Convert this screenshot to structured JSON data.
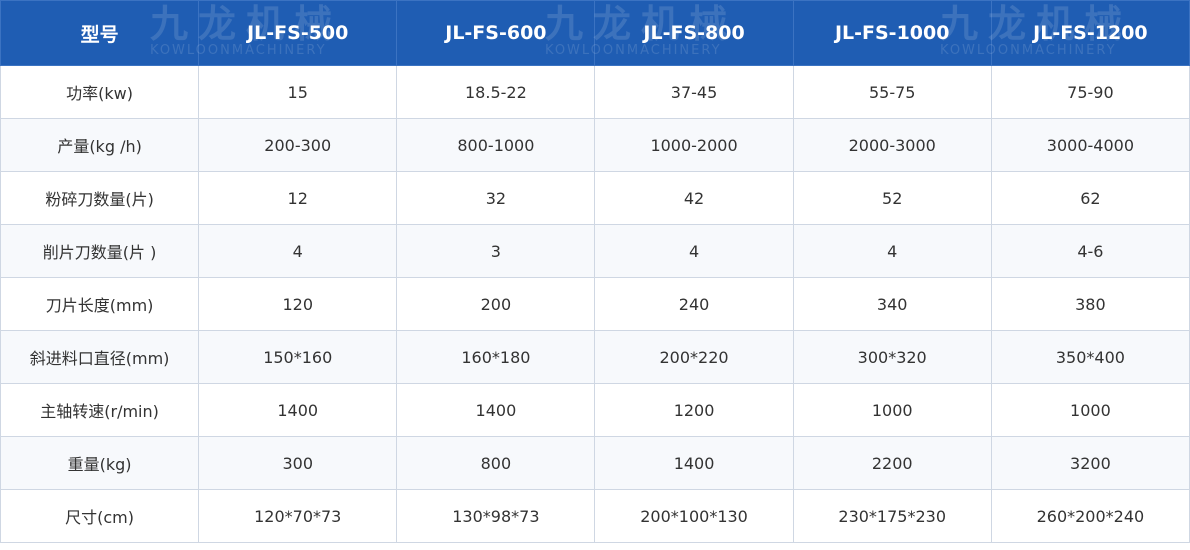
{
  "watermark": {
    "brand": "九龙机械",
    "sub": "KOWLOONMACHINERY"
  },
  "table": {
    "header": [
      "型号",
      "JL-FS-500",
      "JL-FS-600",
      "JL-FS-800",
      "JL-FS-1000",
      "JL-FS-1200"
    ],
    "rows": [
      [
        "功率(kw)",
        "15",
        "18.5-22",
        "37-45",
        "55-75",
        "75-90"
      ],
      [
        "产量(kg /h)",
        "200-300",
        "800-1000",
        "1000-2000",
        "2000-3000",
        "3000-4000"
      ],
      [
        "粉碎刀数量(片)",
        "12",
        "32",
        "42",
        "52",
        "62"
      ],
      [
        "削片刀数量(片 )",
        "4",
        "3",
        "4",
        "4",
        "4-6"
      ],
      [
        "刀片长度(mm)",
        "120",
        "200",
        "240",
        "340",
        "380"
      ],
      [
        "斜进料口直径(mm)",
        "150*160",
        "160*180",
        "200*220",
        "300*320",
        "350*400"
      ],
      [
        "主轴转速(r/min)",
        "1400",
        "1400",
        "1200",
        "1000",
        "1000"
      ],
      [
        "重量(kg)",
        "300",
        "800",
        "1400",
        "2200",
        "3200"
      ],
      [
        "尺寸(cm)",
        "120*70*73",
        "130*98*73",
        "200*100*130",
        "230*175*230",
        "260*200*240"
      ]
    ]
  }
}
